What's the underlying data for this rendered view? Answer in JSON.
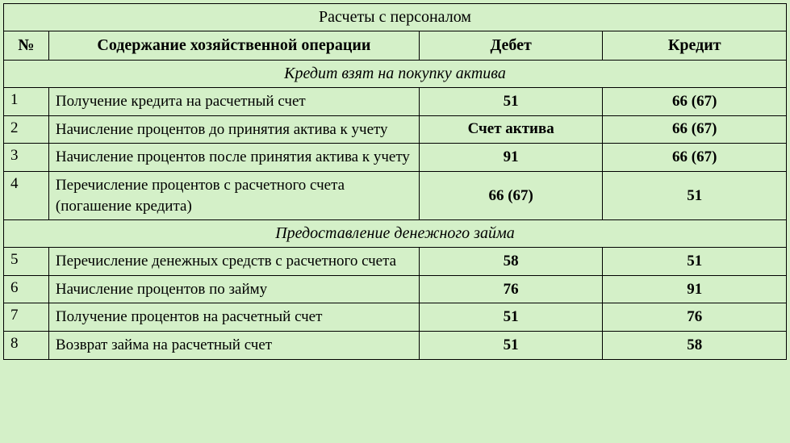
{
  "table": {
    "title": "Расчеты с персоналом",
    "headers": {
      "num": "№",
      "description": "Содержание хозяйственной операции",
      "debit": "Дебет",
      "credit": "Кредит"
    },
    "section1": "Кредит взят на покупку актива",
    "rows1": [
      {
        "num": "1",
        "desc": "Получение кредита на расчетный счет",
        "debit": "51",
        "credit": "66 (67)"
      },
      {
        "num": "2",
        "desc": "Начисление процентов до принятия актива к учету",
        "debit": "Счет актива",
        "credit": "66 (67)"
      },
      {
        "num": "3",
        "desc": "Начисление процентов после принятия актива к учету",
        "debit": "91",
        "credit": "66 (67)"
      },
      {
        "num": "4",
        "desc": "Перечисление процентов с расчетного счета (погашение кредита)",
        "debit": "66 (67)",
        "credit": "51"
      }
    ],
    "section2": "Предоставление денежного займа",
    "rows2": [
      {
        "num": "5",
        "desc": "Перечисление денежных средств с расчетного счета",
        "debit": "58",
        "credit": "51"
      },
      {
        "num": "6",
        "desc": "Начисление процентов по займу",
        "debit": "76",
        "credit": "91"
      },
      {
        "num": "7",
        "desc": "Получение процентов на расчетный счет",
        "debit": "51",
        "credit": "76"
      },
      {
        "num": "8",
        "desc": "Возврат займа на расчетный счет",
        "debit": "51",
        "credit": "58"
      }
    ],
    "colors": {
      "background": "#d4f0c8",
      "border": "#000000"
    }
  }
}
